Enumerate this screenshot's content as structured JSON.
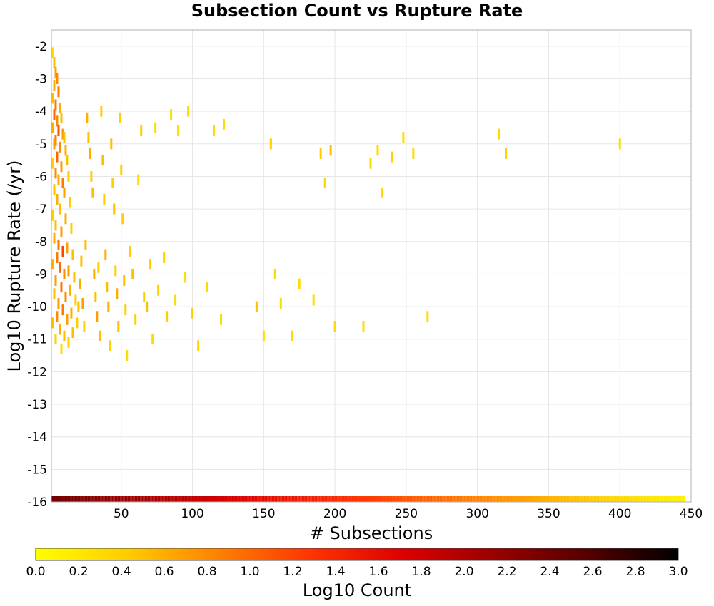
{
  "chart_data": {
    "type": "heatmap",
    "title": "Subsection Count vs Rupture Rate",
    "xlabel": "# Subsections",
    "ylabel": "Log10 Rupture Rate (/yr)",
    "xlim": [
      1,
      450
    ],
    "ylim": [
      -16,
      -1.5
    ],
    "x_ticks": [
      "50",
      "100",
      "150",
      "200",
      "250",
      "300",
      "350",
      "400",
      "450"
    ],
    "x_tick_values": [
      50,
      100,
      150,
      200,
      250,
      300,
      350,
      400,
      450
    ],
    "y_ticks": [
      "-2",
      "-3",
      "-4",
      "-5",
      "-6",
      "-7",
      "-8",
      "-9",
      "-10",
      "-11",
      "-12",
      "-13",
      "-14",
      "-15",
      "-16"
    ],
    "y_tick_values": [
      -2,
      -3,
      -4,
      -5,
      -6,
      -7,
      -8,
      -9,
      -10,
      -11,
      -12,
      -13,
      -14,
      -15,
      -16
    ],
    "grid": true,
    "colorbar": {
      "label": "Log10 Count",
      "range": [
        0,
        3
      ],
      "ticks": [
        "0.0",
        "0.2",
        "0.4",
        "0.6",
        "0.8",
        "1.0",
        "1.2",
        "1.4",
        "1.6",
        "1.8",
        "2.0",
        "2.2",
        "2.4",
        "2.6",
        "2.8",
        "3.0"
      ],
      "tick_values": [
        0,
        0.2,
        0.4,
        0.6,
        0.8,
        1.0,
        1.2,
        1.4,
        1.6,
        1.8,
        2.0,
        2.2,
        2.4,
        2.6,
        2.8,
        3.0
      ],
      "colors": [
        "#ffff00",
        "#ffcc00",
        "#ff8000",
        "#ff3300",
        "#dd0000",
        "#990000",
        "#550000",
        "#000000"
      ]
    },
    "cells": [
      [
        2,
        -2.2,
        0.3
      ],
      [
        3,
        -2.5,
        0.5
      ],
      [
        4,
        -2.8,
        0.7
      ],
      [
        5,
        -3.0,
        0.8
      ],
      [
        3,
        -3.2,
        0.6
      ],
      [
        6,
        -3.4,
        0.9
      ],
      [
        2,
        -3.6,
        0.5
      ],
      [
        4,
        -3.8,
        0.9
      ],
      [
        7,
        -3.9,
        0.6
      ],
      [
        3,
        -4.1,
        1.0
      ],
      [
        5,
        -4.3,
        0.8
      ],
      [
        8,
        -4.2,
        0.5
      ],
      [
        2,
        -4.5,
        0.6
      ],
      [
        6,
        -4.6,
        1.1
      ],
      [
        9,
        -4.7,
        0.7
      ],
      [
        4,
        -4.9,
        0.9
      ],
      [
        10,
        -4.8,
        0.5
      ],
      [
        3,
        -5.0,
        0.7
      ],
      [
        7,
        -5.1,
        0.8
      ],
      [
        11,
        -5.2,
        0.6
      ],
      [
        5,
        -5.4,
        1.0
      ],
      [
        2,
        -5.6,
        0.4
      ],
      [
        8,
        -5.7,
        0.7
      ],
      [
        12,
        -5.5,
        0.5
      ],
      [
        4,
        -5.9,
        0.8
      ],
      [
        6,
        -6.1,
        0.6
      ],
      [
        9,
        -6.2,
        0.9
      ],
      [
        13,
        -6.0,
        0.4
      ],
      [
        3,
        -6.4,
        0.5
      ],
      [
        10,
        -6.5,
        0.7
      ],
      [
        5,
        -6.7,
        0.6
      ],
      [
        14,
        -6.8,
        0.4
      ],
      [
        7,
        -7.0,
        0.5
      ],
      [
        2,
        -7.2,
        0.4
      ],
      [
        11,
        -7.3,
        0.6
      ],
      [
        4,
        -7.5,
        0.5
      ],
      [
        8,
        -7.7,
        0.7
      ],
      [
        15,
        -7.6,
        0.4
      ],
      [
        3,
        -7.9,
        0.6
      ],
      [
        6,
        -8.1,
        0.9
      ],
      [
        12,
        -8.2,
        0.7
      ],
      [
        9,
        -8.3,
        1.2
      ],
      [
        5,
        -8.5,
        0.9
      ],
      [
        16,
        -8.4,
        0.5
      ],
      [
        2,
        -8.7,
        0.6
      ],
      [
        7,
        -8.8,
        1.0
      ],
      [
        13,
        -8.9,
        0.7
      ],
      [
        10,
        -9.0,
        0.8
      ],
      [
        4,
        -9.2,
        0.7
      ],
      [
        17,
        -9.1,
        0.5
      ],
      [
        8,
        -9.4,
        0.9
      ],
      [
        14,
        -9.5,
        0.6
      ],
      [
        3,
        -9.6,
        0.5
      ],
      [
        11,
        -9.7,
        0.8
      ],
      [
        6,
        -9.9,
        0.7
      ],
      [
        18,
        -9.8,
        0.4
      ],
      [
        9,
        -10.1,
        0.9
      ],
      [
        15,
        -10.2,
        0.6
      ],
      [
        5,
        -10.3,
        0.8
      ],
      [
        12,
        -10.4,
        0.7
      ],
      [
        2,
        -10.5,
        0.5
      ],
      [
        19,
        -10.5,
        0.4
      ],
      [
        7,
        -10.7,
        0.6
      ],
      [
        16,
        -10.8,
        0.5
      ],
      [
        10,
        -10.9,
        0.5
      ],
      [
        4,
        -11.0,
        0.4
      ],
      [
        13,
        -11.1,
        0.4
      ],
      [
        8,
        -11.3,
        0.3
      ],
      [
        20,
        -10.0,
        0.5
      ],
      [
        21,
        -9.3,
        0.6
      ],
      [
        22,
        -8.6,
        0.5
      ],
      [
        23,
        -9.9,
        0.7
      ],
      [
        24,
        -10.6,
        0.4
      ],
      [
        25,
        -8.1,
        0.5
      ],
      [
        26,
        -4.2,
        0.6
      ],
      [
        27,
        -4.8,
        0.5
      ],
      [
        28,
        -5.3,
        0.6
      ],
      [
        29,
        -6.0,
        0.4
      ],
      [
        30,
        -6.5,
        0.5
      ],
      [
        31,
        -9.0,
        0.6
      ],
      [
        32,
        -9.7,
        0.5
      ],
      [
        33,
        -10.3,
        0.7
      ],
      [
        34,
        -8.8,
        0.4
      ],
      [
        35,
        -10.9,
        0.5
      ],
      [
        36,
        -4.0,
        0.4
      ],
      [
        37,
        -5.5,
        0.5
      ],
      [
        38,
        -6.7,
        0.4
      ],
      [
        39,
        -8.4,
        0.6
      ],
      [
        40,
        -9.4,
        0.5
      ],
      [
        41,
        -10.0,
        0.6
      ],
      [
        42,
        -11.2,
        0.4
      ],
      [
        43,
        -5.0,
        0.5
      ],
      [
        44,
        -6.2,
        0.4
      ],
      [
        45,
        -7.0,
        0.5
      ],
      [
        46,
        -8.9,
        0.4
      ],
      [
        47,
        -9.6,
        0.6
      ],
      [
        48,
        -10.6,
        0.5
      ],
      [
        49,
        -4.2,
        0.4
      ],
      [
        50,
        -5.8,
        0.4
      ],
      [
        51,
        -7.3,
        0.4
      ],
      [
        52,
        -9.2,
        0.5
      ],
      [
        53,
        -10.1,
        0.4
      ],
      [
        54,
        -11.5,
        0.3
      ],
      [
        56,
        -8.3,
        0.4
      ],
      [
        58,
        -9.0,
        0.5
      ],
      [
        60,
        -10.4,
        0.4
      ],
      [
        62,
        -6.1,
        0.3
      ],
      [
        64,
        -4.6,
        0.4
      ],
      [
        66,
        -9.7,
        0.4
      ],
      [
        68,
        -10.0,
        0.5
      ],
      [
        70,
        -8.7,
        0.4
      ],
      [
        72,
        -11.0,
        0.3
      ],
      [
        74,
        -4.5,
        0.3
      ],
      [
        76,
        -9.5,
        0.4
      ],
      [
        80,
        -8.5,
        0.4
      ],
      [
        82,
        -10.3,
        0.4
      ],
      [
        85,
        -4.1,
        0.3
      ],
      [
        88,
        -9.8,
        0.3
      ],
      [
        90,
        -4.6,
        0.3
      ],
      [
        95,
        -9.1,
        0.3
      ],
      [
        97,
        -4.0,
        0.3
      ],
      [
        100,
        -10.2,
        0.4
      ],
      [
        104,
        -11.2,
        0.3
      ],
      [
        110,
        -9.4,
        0.3
      ],
      [
        115,
        -4.6,
        0.3
      ],
      [
        122,
        -4.4,
        0.3
      ],
      [
        120,
        -10.4,
        0.3
      ],
      [
        145,
        -10.0,
        0.5
      ],
      [
        150,
        -10.9,
        0.3
      ],
      [
        155,
        -5.0,
        0.4
      ],
      [
        158,
        -9.0,
        0.3
      ],
      [
        162,
        -9.9,
        0.3
      ],
      [
        170,
        -10.9,
        0.3
      ],
      [
        175,
        -9.3,
        0.3
      ],
      [
        185,
        -9.8,
        0.3
      ],
      [
        190,
        -5.3,
        0.4
      ],
      [
        193,
        -6.2,
        0.3
      ],
      [
        197,
        -5.2,
        0.5
      ],
      [
        200,
        -10.6,
        0.3
      ],
      [
        220,
        -10.6,
        0.3
      ],
      [
        225,
        -5.6,
        0.3
      ],
      [
        230,
        -5.2,
        0.3
      ],
      [
        233,
        -6.5,
        0.3
      ],
      [
        240,
        -5.4,
        0.4
      ],
      [
        248,
        -4.8,
        0.3
      ],
      [
        255,
        -5.3,
        0.3
      ],
      [
        265,
        -10.3,
        0.3
      ],
      [
        315,
        -4.7,
        0.3
      ],
      [
        320,
        -5.3,
        0.4
      ],
      [
        400,
        -5.0,
        0.3
      ]
    ],
    "baseline_row": {
      "y": -16,
      "x_start": 1,
      "x_end": 445,
      "log10_count_start": 2.4,
      "log10_count_end": 0.1
    }
  }
}
